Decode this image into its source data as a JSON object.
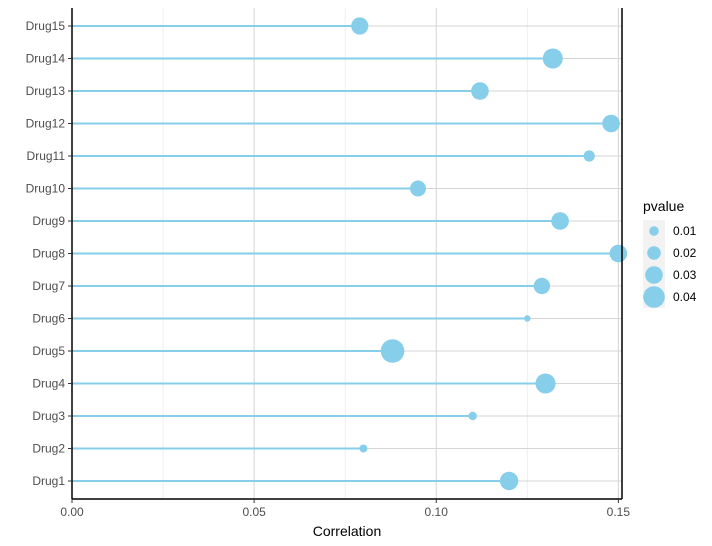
{
  "chart_data": {
    "type": "lollipop",
    "xlabel": "Correlation",
    "ylabel": "",
    "xlim": [
      0,
      0.151
    ],
    "x_ticks": [
      0.0,
      0.05,
      0.1,
      0.15
    ],
    "x_tick_labels": [
      "0.00",
      "0.05",
      "0.10",
      "0.15"
    ],
    "grid": true,
    "color": "#87CEEB",
    "categories": [
      "Drug1",
      "Drug2",
      "Drug3",
      "Drug4",
      "Drug5",
      "Drug6",
      "Drug7",
      "Drug8",
      "Drug9",
      "Drug10",
      "Drug11",
      "Drug12",
      "Drug13",
      "Drug14",
      "Drug15"
    ],
    "values": [
      0.12,
      0.08,
      0.11,
      0.13,
      0.088,
      0.125,
      0.129,
      0.15,
      0.134,
      0.095,
      0.142,
      0.148,
      0.112,
      0.132,
      0.079
    ],
    "pvalue": [
      0.032,
      0.006,
      0.007,
      0.036,
      0.045,
      0.002,
      0.027,
      0.03,
      0.03,
      0.026,
      0.014,
      0.03,
      0.03,
      0.036,
      0.029
    ],
    "legend": {
      "title": "pvalue",
      "placement": "right",
      "entries": [
        {
          "label": "0.01",
          "value": 0.01
        },
        {
          "label": "0.02",
          "value": 0.02
        },
        {
          "label": "0.03",
          "value": 0.03
        },
        {
          "label": "0.04",
          "value": 0.04
        }
      ]
    }
  }
}
